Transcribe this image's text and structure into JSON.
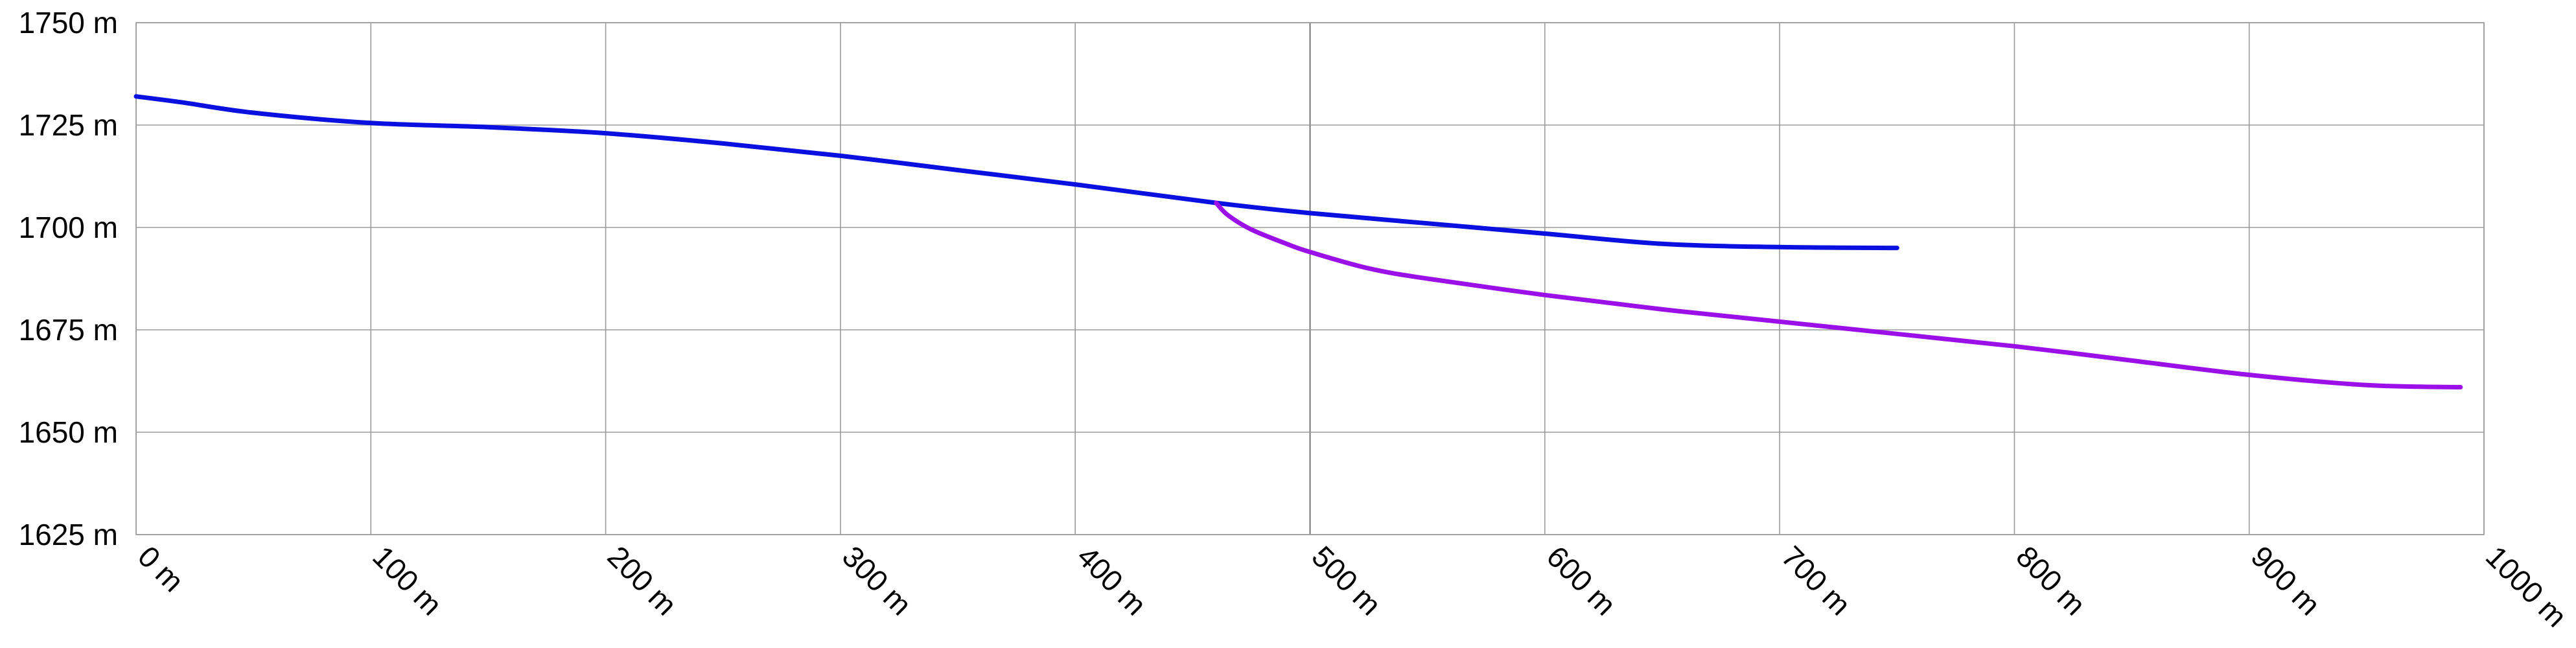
{
  "chart_data": {
    "type": "line",
    "title": "",
    "xlabel": "",
    "ylabel": "",
    "xlim": [
      0,
      1000
    ],
    "ylim": [
      1625,
      1750
    ],
    "x_ticks": [
      0,
      100,
      200,
      300,
      400,
      500,
      600,
      700,
      800,
      900,
      1000
    ],
    "x_tick_labels": [
      "0 m",
      "100 m",
      "200 m",
      "300 m",
      "400 m",
      "500 m",
      "600 m",
      "700 m",
      "800 m",
      "900 m",
      "1000 m"
    ],
    "y_ticks": [
      1625,
      1650,
      1675,
      1700,
      1725,
      1750
    ],
    "y_tick_labels": [
      "1625 m",
      "1650 m",
      "1675 m",
      "1700 m",
      "1725 m",
      "1750 m"
    ],
    "grid": true,
    "legend": "none",
    "series": [
      {
        "color": "#0a10e0",
        "x": [
          0,
          20,
          50,
          100,
          150,
          200,
          250,
          300,
          350,
          400,
          460,
          500,
          550,
          600,
          650,
          700,
          750
        ],
        "y": [
          1732,
          1730.5,
          1728,
          1725.5,
          1724.5,
          1723,
          1720.5,
          1717.5,
          1714,
          1710.5,
          1706,
          1703.5,
          1701,
          1698.5,
          1696,
          1695.2,
          1695
        ]
      },
      {
        "color": "#9b10e8",
        "x": [
          460,
          465,
          475,
          490,
          500,
          525,
          550,
          600,
          650,
          700,
          750,
          800,
          850,
          900,
          950,
          990
        ],
        "y": [
          1706,
          1703,
          1699.5,
          1696,
          1694,
          1690,
          1687.5,
          1683.5,
          1680,
          1677,
          1674,
          1671,
          1667.5,
          1664,
          1661.5,
          1661
        ]
      }
    ]
  }
}
